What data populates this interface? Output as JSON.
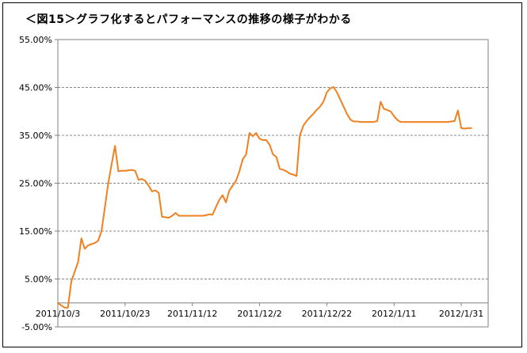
{
  "chart_data": {
    "type": "line",
    "title": "＜図15＞グラフ化するとパフォーマンスの推移の様子がわかる",
    "xlabel": "",
    "ylabel": "",
    "x_tick_labels": [
      "2011/10/3",
      "2011/10/23",
      "2011/11/12",
      "2011/12/2",
      "2011/12/22",
      "2012/1/11",
      "2012/1/31"
    ],
    "x_tick_dates": [
      "2011-10-03",
      "2011-10-23",
      "2011-11-12",
      "2011-12-02",
      "2011-12-22",
      "2012-01-11",
      "2012-01-31"
    ],
    "xlim": [
      "2011-10-03",
      "2012-02-08"
    ],
    "y_tick_labels": [
      "-5.00%",
      "5.00%",
      "15.00%",
      "25.00%",
      "35.00%",
      "45.00%",
      "55.00%"
    ],
    "ylim": [
      -5,
      55
    ],
    "y_unit": "%",
    "grid": true,
    "legend": "none",
    "colors": {
      "line": "#f08020",
      "grid": "#888888",
      "plot_bg": "#ffffff",
      "frame": "#000000"
    },
    "series": [
      {
        "x": [
          "2011-10-03",
          "2011-10-04",
          "2011-10-05",
          "2011-10-06",
          "2011-10-07",
          "2011-10-08",
          "2011-10-09",
          "2011-10-10",
          "2011-10-11",
          "2011-10-12",
          "2011-10-13",
          "2011-10-14",
          "2011-10-15",
          "2011-10-16",
          "2011-10-17",
          "2011-10-18",
          "2011-10-19",
          "2011-10-20",
          "2011-10-21",
          "2011-10-22",
          "2011-10-23",
          "2011-10-24",
          "2011-10-25",
          "2011-10-26",
          "2011-10-27",
          "2011-10-28",
          "2011-10-29",
          "2011-10-30",
          "2011-10-31",
          "2011-11-01",
          "2011-11-02",
          "2011-11-03",
          "2011-11-04",
          "2011-11-05",
          "2011-11-06",
          "2011-11-07",
          "2011-11-08",
          "2011-11-09",
          "2011-11-10",
          "2011-11-11",
          "2011-11-12",
          "2011-11-13",
          "2011-11-14",
          "2011-11-15",
          "2011-11-16",
          "2011-11-17",
          "2011-11-18",
          "2011-11-19",
          "2011-11-20",
          "2011-11-21",
          "2011-11-22",
          "2011-11-23",
          "2011-11-24",
          "2011-11-25",
          "2011-11-26",
          "2011-11-27",
          "2011-11-28",
          "2011-11-29",
          "2011-11-30",
          "2011-12-01",
          "2011-12-02",
          "2011-12-03",
          "2011-12-04",
          "2011-12-05",
          "2011-12-06",
          "2011-12-07",
          "2011-12-08",
          "2011-12-09",
          "2011-12-10",
          "2011-12-11",
          "2011-12-12",
          "2011-12-13",
          "2011-12-14",
          "2011-12-15",
          "2011-12-16",
          "2011-12-17",
          "2011-12-18",
          "2011-12-19",
          "2011-12-20",
          "2011-12-21",
          "2011-12-22",
          "2011-12-23",
          "2011-12-24",
          "2011-12-25",
          "2011-12-26",
          "2011-12-27",
          "2011-12-28",
          "2011-12-29",
          "2011-12-30",
          "2011-12-31",
          "2012-01-01",
          "2012-01-02",
          "2012-01-03",
          "2012-01-04",
          "2012-01-05",
          "2012-01-06",
          "2012-01-07",
          "2012-01-08",
          "2012-01-09",
          "2012-01-10",
          "2012-01-11",
          "2012-01-12",
          "2012-01-13",
          "2012-01-14",
          "2012-01-15",
          "2012-01-16",
          "2012-01-17",
          "2012-01-18",
          "2012-01-19",
          "2012-01-20",
          "2012-01-21",
          "2012-01-22",
          "2012-01-23",
          "2012-01-24",
          "2012-01-25",
          "2012-01-26",
          "2012-01-27",
          "2012-01-28",
          "2012-01-29",
          "2012-01-30",
          "2012-01-31",
          "2012-02-01",
          "2012-02-02",
          "2012-02-03"
        ],
        "y": [
          0.0,
          -0.5,
          -1.0,
          -1.0,
          4.5,
          6.5,
          8.5,
          13.5,
          11.3,
          12.0,
          12.3,
          12.5,
          13.0,
          15.0,
          20.0,
          25.0,
          29.0,
          32.8,
          27.5,
          27.6,
          27.6,
          27.7,
          27.8,
          27.6,
          25.7,
          25.9,
          25.5,
          24.5,
          23.3,
          23.5,
          23.0,
          18.0,
          17.9,
          17.8,
          18.2,
          18.8,
          18.2,
          18.2,
          18.2,
          18.2,
          18.2,
          18.2,
          18.2,
          18.2,
          18.3,
          18.5,
          18.4,
          20.0,
          21.5,
          22.5,
          21.0,
          23.5,
          24.5,
          25.5,
          27.5,
          30.0,
          31.0,
          35.5,
          34.8,
          35.5,
          34.3,
          34.0,
          34.0,
          33.0,
          31.0,
          30.5,
          28.0,
          27.8,
          27.5,
          27.0,
          26.8,
          26.5,
          35.0,
          37.0,
          38.0,
          38.8,
          39.5,
          40.3,
          41.0,
          42.0,
          44.0,
          44.8,
          45.1,
          44.0,
          42.5,
          41.0,
          39.5,
          38.3,
          37.9,
          37.9,
          37.8,
          37.8,
          37.8,
          37.8,
          37.8,
          38.0,
          42.0,
          40.5,
          40.3,
          40.0,
          39.0,
          38.2,
          37.8,
          37.8,
          37.8,
          37.8,
          37.8,
          37.8,
          37.8,
          37.8,
          37.8,
          37.8,
          37.8,
          37.8,
          37.8,
          37.8,
          37.8,
          37.9,
          38.0,
          40.2,
          36.5,
          36.4,
          36.5,
          36.5
        ]
      }
    ]
  }
}
